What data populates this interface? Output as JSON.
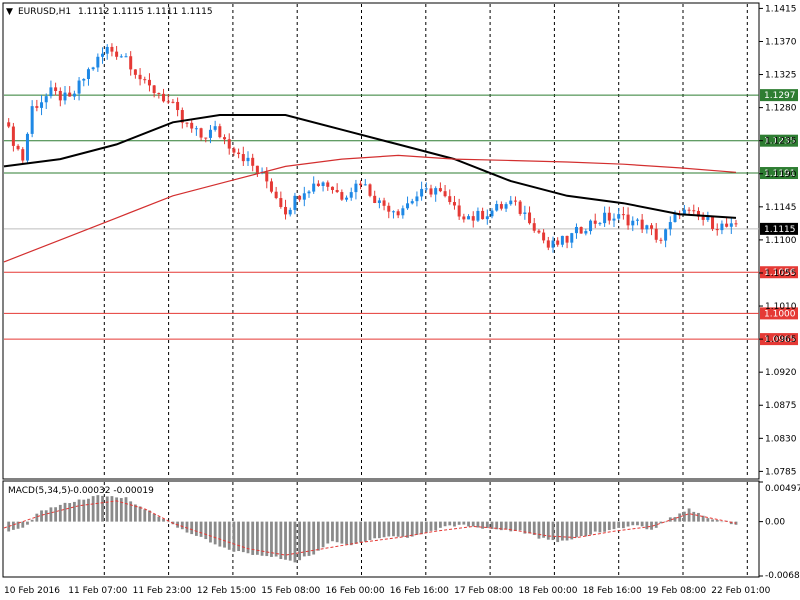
{
  "chart_data": [
    {
      "type": "candlestick",
      "title": "EURUSD,H1  1.1112 1.1115 1.1111 1.1115",
      "symbol": "EURUSD,H1",
      "ohlc_header": "1.1112 1.1115 1.1111 1.1115",
      "ylim": [
        1.0776,
        1.1421
      ],
      "y_ticks": [
        "1.1415",
        "1.1370",
        "1.1325",
        "1.1280",
        "1.1235",
        "1.1190",
        "1.1145",
        "1.1100",
        "1.1055",
        "1.1010",
        "1.0965",
        "1.0920",
        "1.0875",
        "1.0830",
        "1.0785"
      ],
      "x_labels": [
        "10 Feb 2016",
        "11 Feb 07:00",
        "11 Feb 23:00",
        "12 Feb 15:00",
        "15 Feb 08:00",
        "16 Feb 00:00",
        "16 Feb 16:00",
        "17 Feb 08:00",
        "18 Feb 00:00",
        "18 Feb 16:00",
        "19 Feb 08:00",
        "22 Feb 01:00"
      ],
      "current_price": "1.1115",
      "levels": [
        {
          "value": 1.1297,
          "label": "1.1297",
          "color": "#2e7d32"
        },
        {
          "value": 1.1235,
          "label": "1.1235",
          "color": "#2e7d32"
        },
        {
          "value": 1.1191,
          "label": "1.1191",
          "color": "#2e7d32"
        },
        {
          "value": 1.1056,
          "label": "1.1056",
          "color": "#e53935"
        },
        {
          "value": 1.1,
          "label": "1.1000",
          "color": "#e53935"
        },
        {
          "value": 1.0965,
          "label": "1.0965",
          "color": "#e53935"
        }
      ],
      "close_path": [
        [
          0,
          1.126
        ],
        [
          4,
          1.121
        ],
        [
          6,
          1.128
        ],
        [
          10,
          1.13
        ],
        [
          14,
          1.129
        ],
        [
          18,
          1.133
        ],
        [
          22,
          1.136
        ],
        [
          26,
          1.135
        ],
        [
          30,
          1.131
        ],
        [
          33,
          1.13
        ],
        [
          36,
          1.128
        ],
        [
          38,
          1.126
        ],
        [
          42,
          1.124
        ],
        [
          45,
          1.125
        ],
        [
          48,
          1.123
        ],
        [
          50,
          1.122
        ],
        [
          53,
          1.12
        ],
        [
          56,
          1.118
        ],
        [
          60,
          1.114
        ],
        [
          64,
          1.117
        ],
        [
          68,
          1.118
        ],
        [
          72,
          1.116
        ],
        [
          76,
          1.118
        ],
        [
          80,
          1.115
        ],
        [
          84,
          1.114
        ],
        [
          88,
          1.116
        ],
        [
          92,
          1.117
        ],
        [
          96,
          1.114
        ],
        [
          100,
          1.113
        ],
        [
          104,
          1.114
        ],
        [
          108,
          1.115
        ],
        [
          112,
          1.113
        ],
        [
          116,
          1.109
        ],
        [
          120,
          1.11
        ],
        [
          124,
          1.112
        ],
        [
          128,
          1.113
        ],
        [
          132,
          1.113
        ],
        [
          136,
          1.112
        ],
        [
          140,
          1.11
        ],
        [
          144,
          1.114
        ],
        [
          148,
          1.113
        ],
        [
          152,
          1.112
        ],
        [
          156,
          1.1115
        ]
      ],
      "moving_averages": [
        {
          "color": "#000000",
          "points": [
            [
              0,
              1.12
            ],
            [
              12,
              1.121
            ],
            [
              24,
              1.123
            ],
            [
              36,
              1.126
            ],
            [
              46,
              1.127
            ],
            [
              60,
              1.127
            ],
            [
              72,
              1.125
            ],
            [
              84,
              1.123
            ],
            [
              96,
              1.121
            ],
            [
              108,
              1.118
            ],
            [
              120,
              1.116
            ],
            [
              132,
              1.115
            ],
            [
              144,
              1.1135
            ],
            [
              156,
              1.113
            ]
          ]
        },
        {
          "color": "#d32f2f",
          "points": [
            [
              0,
              1.107
            ],
            [
              12,
              1.11
            ],
            [
              24,
              1.113
            ],
            [
              36,
              1.116
            ],
            [
              48,
              1.118
            ],
            [
              60,
              1.12
            ],
            [
              72,
              1.121
            ],
            [
              84,
              1.1215
            ],
            [
              96,
              1.121
            ],
            [
              108,
              1.1208
            ],
            [
              120,
              1.1206
            ],
            [
              132,
              1.1203
            ],
            [
              144,
              1.1198
            ],
            [
              156,
              1.1192
            ]
          ]
        }
      ]
    },
    {
      "type": "bar",
      "title": "MACD(5,34,5) -0.00032 -0.00019",
      "indicator": "MACD(5,34,5)",
      "values_header": "-0.00032 -0.00019",
      "ylim": [
        -0.00682,
        0.00497
      ],
      "y_ticks": [
        "0.00497",
        "0.00",
        "-0.00682"
      ],
      "bars_path": [
        [
          0,
          -0.0015
        ],
        [
          4,
          -0.0008
        ],
        [
          8,
          0.0014
        ],
        [
          14,
          0.0024
        ],
        [
          20,
          0.0032
        ],
        [
          26,
          0.003
        ],
        [
          30,
          0.0016
        ],
        [
          34,
          0.0003
        ],
        [
          38,
          -0.001
        ],
        [
          42,
          -0.002
        ],
        [
          46,
          -0.0032
        ],
        [
          50,
          -0.0038
        ],
        [
          54,
          -0.0042
        ],
        [
          58,
          -0.0045
        ],
        [
          62,
          -0.005
        ],
        [
          66,
          -0.004
        ],
        [
          70,
          -0.0025
        ],
        [
          74,
          -0.003
        ],
        [
          78,
          -0.0022
        ],
        [
          82,
          -0.0018
        ],
        [
          86,
          -0.002
        ],
        [
          90,
          -0.0014
        ],
        [
          94,
          -0.0006
        ],
        [
          98,
          -0.0004
        ],
        [
          102,
          -0.0008
        ],
        [
          106,
          -0.001
        ],
        [
          110,
          -0.0012
        ],
        [
          114,
          -0.002
        ],
        [
          118,
          -0.0026
        ],
        [
          122,
          -0.002
        ],
        [
          126,
          -0.0014
        ],
        [
          130,
          -0.001
        ],
        [
          134,
          -0.0004
        ],
        [
          138,
          -0.001
        ],
        [
          142,
          0.0004
        ],
        [
          146,
          0.0016
        ],
        [
          150,
          0.0005
        ],
        [
          156,
          -0.0003
        ]
      ],
      "signal_path": [
        [
          0,
          -0.0008
        ],
        [
          8,
          0.0008
        ],
        [
          16,
          0.002
        ],
        [
          24,
          0.0026
        ],
        [
          30,
          0.0016
        ],
        [
          36,
          -0.0002
        ],
        [
          44,
          -0.0018
        ],
        [
          52,
          -0.0034
        ],
        [
          60,
          -0.0042
        ],
        [
          68,
          -0.0034
        ],
        [
          76,
          -0.0026
        ],
        [
          84,
          -0.002
        ],
        [
          92,
          -0.0012
        ],
        [
          100,
          -0.0006
        ],
        [
          108,
          -0.001
        ],
        [
          116,
          -0.0018
        ],
        [
          122,
          -0.002
        ],
        [
          130,
          -0.0012
        ],
        [
          138,
          -0.0006
        ],
        [
          146,
          0.001
        ],
        [
          156,
          -0.0002
        ]
      ]
    }
  ]
}
